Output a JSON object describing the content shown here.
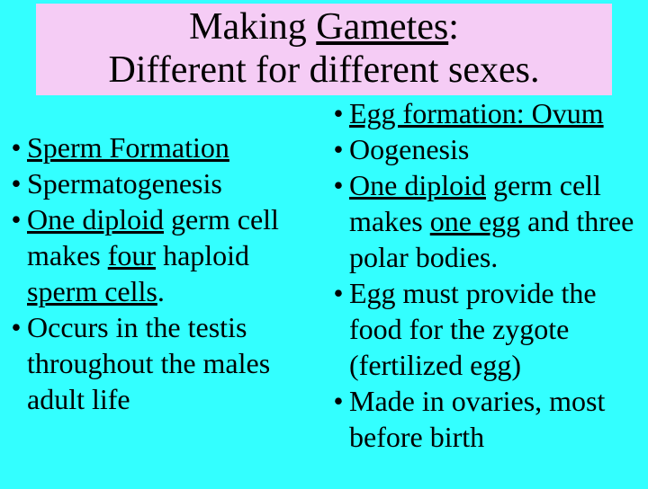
{
  "colors": {
    "background": "#33ffff",
    "header_bg": "#f5ccf5",
    "text": "#000000"
  },
  "typography": {
    "title_fontsize_pt": 32,
    "body_fontsize_pt": 24,
    "family": "Times New Roman"
  },
  "header": {
    "t_a": "Making ",
    "t_b": "Gametes",
    "t_c": ":",
    "sub": "Different for different sexes."
  },
  "left": {
    "b1_a": "Sperm Formation",
    "b2_a": "Spermatogenesis",
    "b3_a": "One diploid",
    "b3_b": " germ cell makes ",
    "b3_c": "four",
    "b3_d": " haploid ",
    "b3_e": "sperm cells",
    "b3_f": ".",
    "b4": "Occurs in the testis throughout the males adult life"
  },
  "right": {
    "b1_a": "Egg formation: Ovum",
    "b2": "Oogenesis",
    "b3_a": "One diploid",
    "b3_b": " germ cell makes ",
    "b3_c": "one egg",
    "b3_d": " and three polar bodies.",
    "b4": "Egg must provide the food for the zygote (fertilized egg)",
    "b5": "Made in ovaries, most before birth"
  }
}
